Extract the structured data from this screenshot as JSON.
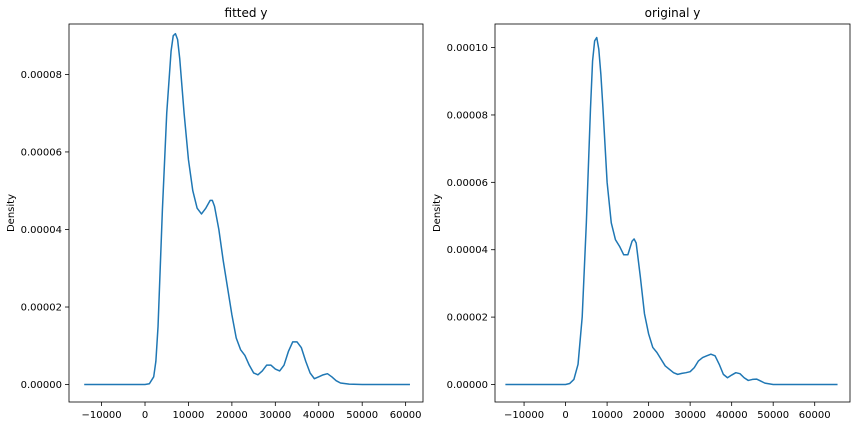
{
  "chart_data": [
    {
      "type": "line",
      "title": "fitted y",
      "xlabel": "",
      "ylabel": "Density",
      "xlim": [
        -17500,
        64000
      ],
      "ylim": [
        -4.5e-06,
        9.3e-05
      ],
      "xticks": [
        -10000,
        0,
        10000,
        20000,
        30000,
        40000,
        50000,
        60000
      ],
      "xtick_labels": [
        "−10000",
        "0",
        "10000",
        "20000",
        "30000",
        "40000",
        "50000",
        "60000"
      ],
      "yticks": [
        0,
        2e-05,
        4e-05,
        6e-05,
        8e-05
      ],
      "ytick_labels": [
        "0.00000",
        "0.00002",
        "0.00004",
        "0.00006",
        "0.00008"
      ],
      "grid": false,
      "color": "#1f77b4",
      "series": [
        {
          "x": [
            -14000,
            0,
            1000,
            2000,
            2500,
            3000,
            4000,
            5000,
            6000,
            6500,
            7000,
            7500,
            8000,
            8500,
            9000,
            10000,
            11000,
            12000,
            13000,
            14000,
            15000,
            15500,
            16000,
            17000,
            18000,
            19000,
            20000,
            21000,
            22000,
            23000,
            24000,
            25000,
            26000,
            27000,
            28000,
            29000,
            30000,
            31000,
            32000,
            33000,
            34000,
            35000,
            36000,
            37000,
            38000,
            39000,
            40000,
            41000,
            42000,
            43000,
            44000,
            45000,
            47000,
            50000,
            55000,
            61000
          ],
          "y": [
            0,
            0,
            2e-07,
            2e-06,
            6e-06,
            1.5e-05,
            4.5e-05,
            7e-05,
            8.6e-05,
            9e-05,
            9.05e-05,
            8.9e-05,
            8.4e-05,
            7.7e-05,
            7e-05,
            5.8e-05,
            5e-05,
            4.55e-05,
            4.4e-05,
            4.55e-05,
            4.75e-05,
            4.75e-05,
            4.6e-05,
            4e-05,
            3.2e-05,
            2.5e-05,
            1.8e-05,
            1.2e-05,
            9e-06,
            7.5e-06,
            5e-06,
            3e-06,
            2.5e-06,
            3.5e-06,
            5e-06,
            5e-06,
            4e-06,
            3.5e-06,
            5e-06,
            8.5e-06,
            1.1e-05,
            1.1e-05,
            9.5e-06,
            6e-06,
            3e-06,
            1.5e-06,
            2e-06,
            2.5e-06,
            2.8e-06,
            2e-06,
            1e-06,
            4e-07,
            1e-07,
            0,
            0,
            0
          ]
        }
      ]
    },
    {
      "type": "line",
      "title": "original y",
      "xlabel": "",
      "ylabel": "Density",
      "xlim": [
        -17000,
        68500
      ],
      "ylim": [
        -5.2e-06,
        0.000107
      ],
      "xticks": [
        -10000,
        0,
        10000,
        20000,
        30000,
        40000,
        50000,
        60000
      ],
      "xtick_labels": [
        "−10000",
        "0",
        "10000",
        "20000",
        "30000",
        "40000",
        "50000",
        "60000"
      ],
      "yticks": [
        0,
        2e-05,
        4e-05,
        6e-05,
        8e-05,
        0.0001
      ],
      "ytick_labels": [
        "0.00000",
        "0.00002",
        "0.00004",
        "0.00006",
        "0.00008",
        "0.00010"
      ],
      "grid": false,
      "color": "#1f77b4",
      "series": [
        {
          "x": [
            -14500,
            0,
            1000,
            2000,
            3000,
            4000,
            5000,
            6000,
            6500,
            7000,
            7500,
            8000,
            8500,
            9000,
            10000,
            11000,
            12000,
            13000,
            14000,
            15000,
            16000,
            16500,
            17000,
            18000,
            19000,
            20000,
            21000,
            22000,
            23000,
            24000,
            25000,
            26000,
            27000,
            28000,
            29000,
            30000,
            31000,
            32000,
            33000,
            34000,
            35000,
            36000,
            37000,
            38000,
            39000,
            40000,
            41000,
            42000,
            43000,
            44000,
            45000,
            46000,
            47000,
            48000,
            50000,
            55000,
            65500
          ],
          "y": [
            0,
            0,
            3e-07,
            1.5e-06,
            6e-06,
            2e-05,
            4.8e-05,
            8.2e-05,
            9.6e-05,
            0.000102,
            0.000103,
            9.95e-05,
            9.2e-05,
            8.2e-05,
            6e-05,
            4.8e-05,
            4.3e-05,
            4.1e-05,
            3.85e-05,
            3.85e-05,
            4.25e-05,
            4.32e-05,
            4.2e-05,
            3.2e-05,
            2.1e-05,
            1.5e-05,
            1.1e-05,
            9.5e-06,
            7.5e-06,
            5.5e-06,
            4.5e-06,
            3.5e-06,
            3e-06,
            3.3e-06,
            3.5e-06,
            3.8e-06,
            5e-06,
            7e-06,
            8e-06,
            8.5e-06,
            9e-06,
            8.5e-06,
            6e-06,
            3e-06,
            2e-06,
            2.8e-06,
            3.5e-06,
            3.2e-06,
            2e-06,
            1.2e-06,
            1.5e-06,
            1.6e-06,
            1e-06,
            4e-07,
            0,
            0,
            0
          ]
        }
      ]
    }
  ]
}
